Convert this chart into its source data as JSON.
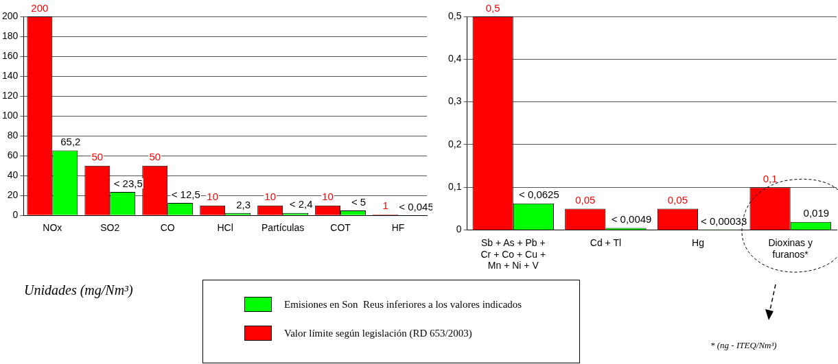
{
  "chart_data": [
    {
      "type": "bar",
      "categories": [
        "NOx",
        "SO2",
        "CO",
        "HCl",
        "Partículas",
        "COT",
        "HF"
      ],
      "series": [
        {
          "name": "Valor límite según legislación (RD 653/2003)",
          "color": "#ff0000",
          "values": [
            200,
            50,
            50,
            10,
            10,
            10,
            1
          ],
          "value_labels": [
            "200",
            "50",
            "50",
            "10",
            "10",
            "10",
            "1"
          ]
        },
        {
          "name": "Emisiones en Son  Reus inferiores a los valores indicados",
          "color": "#00ff00",
          "values": [
            65.2,
            23.5,
            12.5,
            2.3,
            2.4,
            5,
            0.045
          ],
          "value_labels": [
            "65,2",
            "< 23,5",
            "< 12,5",
            "2,3",
            "< 2,4",
            "< 5",
            "< 0,045"
          ]
        }
      ],
      "ylim": [
        0,
        200
      ],
      "yticks": [
        0,
        20,
        40,
        60,
        80,
        100,
        120,
        140,
        160,
        180,
        200
      ],
      "grid": "y",
      "legend": "bottom",
      "annotations": [
        "Unidades (mg/Nm³)"
      ]
    },
    {
      "type": "bar",
      "categories": [
        "Sb + As + Pb + Cr + Co + Cu + Mn + Ni + V",
        "Cd + Tl",
        "Hg",
        "Dioxinas y furanos*"
      ],
      "series": [
        {
          "color": "#ff0000",
          "values": [
            0.5,
            0.05,
            0.05,
            0.1
          ],
          "value_labels": [
            "0,5",
            "0,05",
            "0,05",
            "0,1"
          ]
        },
        {
          "color": "#00ff00",
          "values": [
            0.0625,
            0.0049,
            0.00033,
            0.019
          ],
          "value_labels": [
            "< 0,0625",
            "< 0,0049",
            "< 0,00033",
            "0,019"
          ]
        }
      ],
      "ylim": [
        0,
        0.5
      ],
      "yticks": [
        0,
        {
          "value": 0.1,
          "label": "0,1"
        },
        {
          "value": 0.2,
          "label": "0,2"
        },
        {
          "value": 0.3,
          "label": "0,3"
        },
        {
          "value": 0.4,
          "label": "0,4"
        },
        {
          "value": 0.5,
          "label": "0,5"
        }
      ],
      "grid": "y",
      "annotations": [
        "* (ng - ITEQ/Nm³)"
      ]
    }
  ]
}
